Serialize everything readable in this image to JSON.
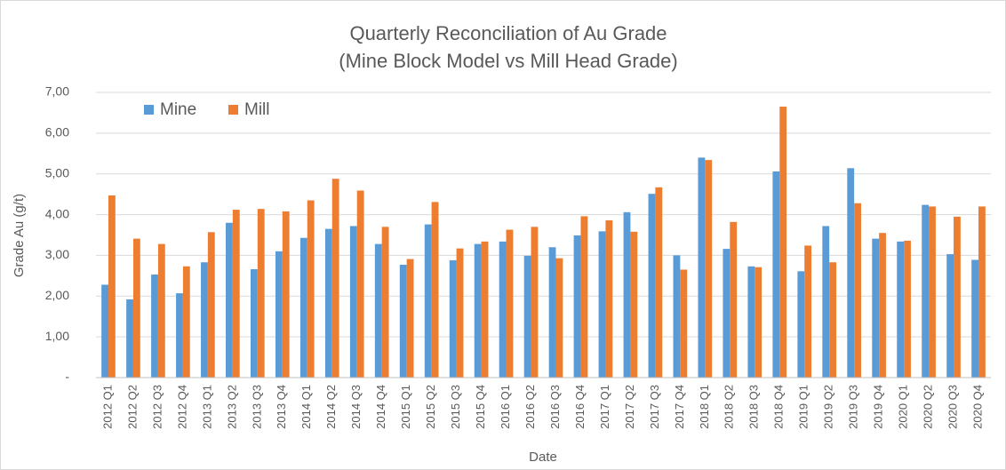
{
  "chart_data": {
    "type": "bar",
    "title": "Quarterly Reconciliation of Au Grade",
    "subtitle": "(Mine Block Model vs Mill Head Grade)",
    "x_label": "Date",
    "y_label": "Grade Au (g/t)",
    "categories": [
      "2012 Q1",
      "2012 Q2",
      "2012 Q3",
      "2012 Q4",
      "2013 Q1",
      "2013 Q2",
      "2013 Q3",
      "2013 Q4",
      "2014 Q1",
      "2014 Q2",
      "2014 Q3",
      "2014 Q4",
      "2015 Q1",
      "2015 Q2",
      "2015 Q3",
      "2015 Q4",
      "2016 Q1",
      "2016 Q2",
      "2016 Q3",
      "2016 Q4",
      "2017 Q1",
      "2017 Q2",
      "2017 Q3",
      "2017 Q4",
      "2018 Q1",
      "2018 Q2",
      "2018 Q3",
      "2018 Q4",
      "2019 Q1",
      "2019 Q2",
      "2019 Q3",
      "2019 Q4",
      "2020 Q1",
      "2020 Q2",
      "2020 Q3",
      "2020 Q4"
    ],
    "series": [
      {
        "name": "Mine",
        "color": "#5b9bd5",
        "values": [
          2.28,
          1.92,
          2.53,
          2.07,
          2.83,
          3.8,
          2.66,
          3.1,
          3.43,
          3.65,
          3.72,
          3.28,
          2.77,
          3.76,
          2.88,
          3.28,
          3.34,
          2.99,
          3.2,
          3.49,
          3.59,
          4.06,
          4.51,
          3.0,
          5.4,
          3.16,
          2.73,
          5.06,
          2.61,
          3.72,
          5.14,
          3.41,
          3.34,
          4.24,
          3.03,
          2.89
        ]
      },
      {
        "name": "Mill",
        "color": "#ed7d31",
        "values": [
          4.47,
          3.41,
          3.28,
          2.73,
          3.57,
          4.12,
          4.14,
          4.08,
          4.35,
          4.88,
          4.59,
          3.7,
          2.91,
          4.31,
          3.17,
          3.34,
          3.63,
          3.7,
          2.93,
          3.96,
          3.86,
          3.58,
          4.67,
          2.65,
          5.34,
          3.82,
          2.71,
          6.65,
          3.24,
          2.83,
          4.28,
          3.55,
          3.36,
          4.2,
          3.95,
          4.2
        ]
      }
    ],
    "ylim": [
      0,
      7
    ],
    "yticks": [
      {
        "value": 0,
        "label": "-"
      },
      {
        "value": 1,
        "label": "1,00"
      },
      {
        "value": 2,
        "label": "2,00"
      },
      {
        "value": 3,
        "label": "3,00"
      },
      {
        "value": 4,
        "label": "4,00"
      },
      {
        "value": 5,
        "label": "5,00"
      },
      {
        "value": 6,
        "label": "6,00"
      },
      {
        "value": 7,
        "label": "7,00"
      }
    ],
    "grid": true,
    "legend": "upper left"
  }
}
